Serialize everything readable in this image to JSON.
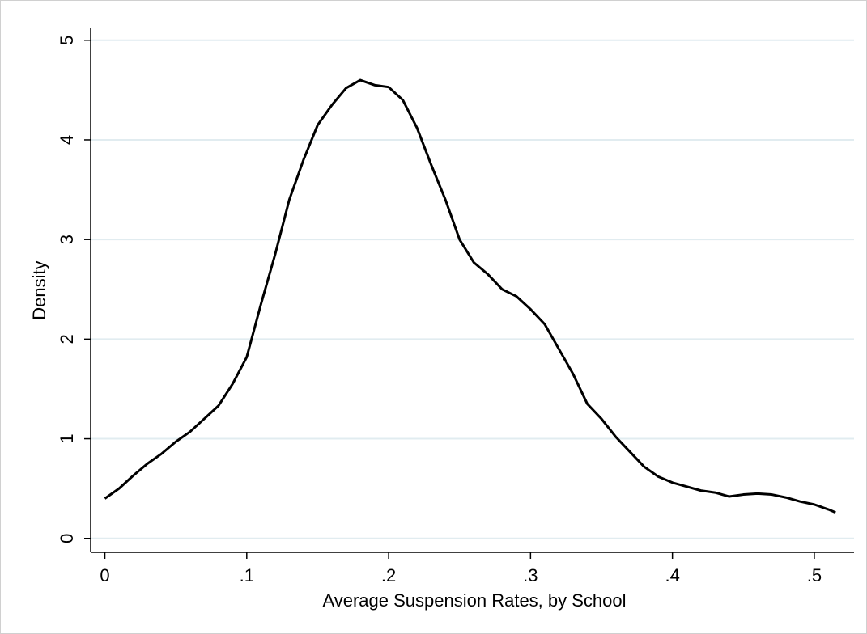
{
  "chart_data": {
    "type": "line",
    "xlabel": "Average Suspension Rates, by School",
    "ylabel": "Density",
    "x": [
      0,
      0.01,
      0.02,
      0.03,
      0.04,
      0.05,
      0.06,
      0.07,
      0.08,
      0.09,
      0.1,
      0.11,
      0.12,
      0.13,
      0.14,
      0.15,
      0.16,
      0.17,
      0.18,
      0.19,
      0.2,
      0.21,
      0.22,
      0.23,
      0.24,
      0.25,
      0.26,
      0.27,
      0.28,
      0.29,
      0.3,
      0.31,
      0.32,
      0.33,
      0.34,
      0.35,
      0.36,
      0.37,
      0.38,
      0.39,
      0.4,
      0.41,
      0.42,
      0.43,
      0.44,
      0.45,
      0.46,
      0.47,
      0.48,
      0.49,
      0.5,
      0.51,
      0.515
    ],
    "values": [
      0.4,
      0.5,
      0.63,
      0.75,
      0.85,
      0.97,
      1.07,
      1.2,
      1.33,
      1.55,
      1.82,
      2.35,
      2.85,
      3.4,
      3.8,
      4.15,
      4.35,
      4.52,
      4.6,
      4.55,
      4.53,
      4.4,
      4.12,
      3.75,
      3.4,
      3.0,
      2.77,
      2.65,
      2.5,
      2.43,
      2.3,
      2.15,
      1.9,
      1.65,
      1.35,
      1.2,
      1.02,
      0.87,
      0.72,
      0.62,
      0.56,
      0.52,
      0.48,
      0.46,
      0.42,
      0.44,
      0.45,
      0.44,
      0.41,
      0.37,
      0.34,
      0.29,
      0.26
    ],
    "color": "#000000",
    "xlim": [
      -0.01,
      0.528
    ],
    "ylim": [
      -0.14,
      5.12
    ],
    "xticks": [
      0,
      {
        "value": 0.1,
        "label": ".1"
      },
      {
        "value": 0.2,
        "label": ".2"
      },
      {
        "value": 0.3,
        "label": ".3"
      },
      {
        "value": 0.4,
        "label": ".4"
      },
      {
        "value": 0.5,
        "label": ".5"
      }
    ],
    "yticks": [
      0,
      1,
      2,
      3,
      4,
      5
    ],
    "grid": true
  }
}
